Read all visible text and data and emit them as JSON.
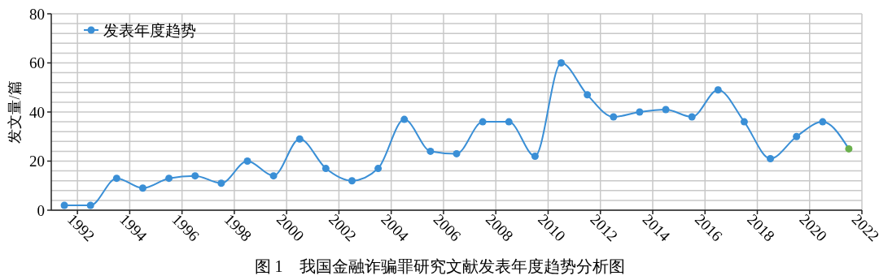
{
  "chart_data": {
    "type": "line",
    "title": "图 1　我国金融诈骗罪研究文献发表年度趋势分析图",
    "ylabel": "发文量/篇",
    "x": [
      1991.5,
      1992.5,
      1993.5,
      1994.5,
      1995.5,
      1996.5,
      1997.5,
      1998.5,
      1999.5,
      2000.5,
      2001.5,
      2002.5,
      2003.5,
      2004.5,
      2005.5,
      2006.5,
      2007.5,
      2008.5,
      2009.5,
      2010.5,
      2011.5,
      2012.5,
      2013.5,
      2014.5,
      2015.5,
      2016.5,
      2017.5,
      2018.5,
      2019.5,
      2020.5,
      2021.5
    ],
    "series": [
      {
        "name": "发表年度趋势",
        "color": "#3a8fd6",
        "colors": [
          "#3a8fd6",
          "#3a8fd6",
          "#3a8fd6",
          "#3a8fd6",
          "#3a8fd6",
          "#3a8fd6",
          "#3a8fd6",
          "#3a8fd6",
          "#3a8fd6",
          "#3a8fd6",
          "#3a8fd6",
          "#3a8fd6",
          "#3a8fd6",
          "#3a8fd6",
          "#3a8fd6",
          "#3a8fd6",
          "#3a8fd6",
          "#3a8fd6",
          "#3a8fd6",
          "#3a8fd6",
          "#3a8fd6",
          "#3a8fd6",
          "#3a8fd6",
          "#3a8fd6",
          "#3a8fd6",
          "#3a8fd6",
          "#3a8fd6",
          "#3a8fd6",
          "#3a8fd6",
          "#3a8fd6",
          "#6ab04c"
        ],
        "values": [
          2,
          2,
          13,
          9,
          13,
          14,
          11,
          20,
          14,
          29,
          17,
          12,
          17,
          37,
          24,
          23,
          36,
          36,
          22,
          60,
          47,
          38,
          40,
          41,
          38,
          49,
          36,
          21,
          30,
          36,
          25
        ]
      }
    ],
    "xlim": [
      1991,
      2022
    ],
    "xticks": [
      1992,
      1994,
      1996,
      1998,
      2000,
      2002,
      2004,
      2006,
      2008,
      2010,
      2012,
      2014,
      2016,
      2018,
      2020,
      2022
    ],
    "ylim": [
      0,
      80
    ],
    "yticks": [
      0,
      {
        "value": 4,
        "label": null
      },
      {
        "value": 8,
        "label": null
      },
      {
        "value": 12,
        "label": null
      },
      {
        "value": 16,
        "label": null
      },
      20,
      {
        "value": 24,
        "label": null
      },
      {
        "value": 28,
        "label": null
      },
      {
        "value": 32,
        "label": null
      },
      {
        "value": 36,
        "label": null
      },
      40,
      {
        "value": 44,
        "label": null
      },
      {
        "value": 48,
        "label": null
      },
      {
        "value": 52,
        "label": null
      },
      {
        "value": 56,
        "label": null
      },
      60,
      {
        "value": 64,
        "label": null
      },
      {
        "value": 68,
        "label": null
      },
      {
        "value": 72,
        "label": null
      },
      {
        "value": 76,
        "label": null
      },
      80
    ],
    "grid": true,
    "legend": "top left",
    "marker": "circle",
    "line_style": "solid"
  }
}
